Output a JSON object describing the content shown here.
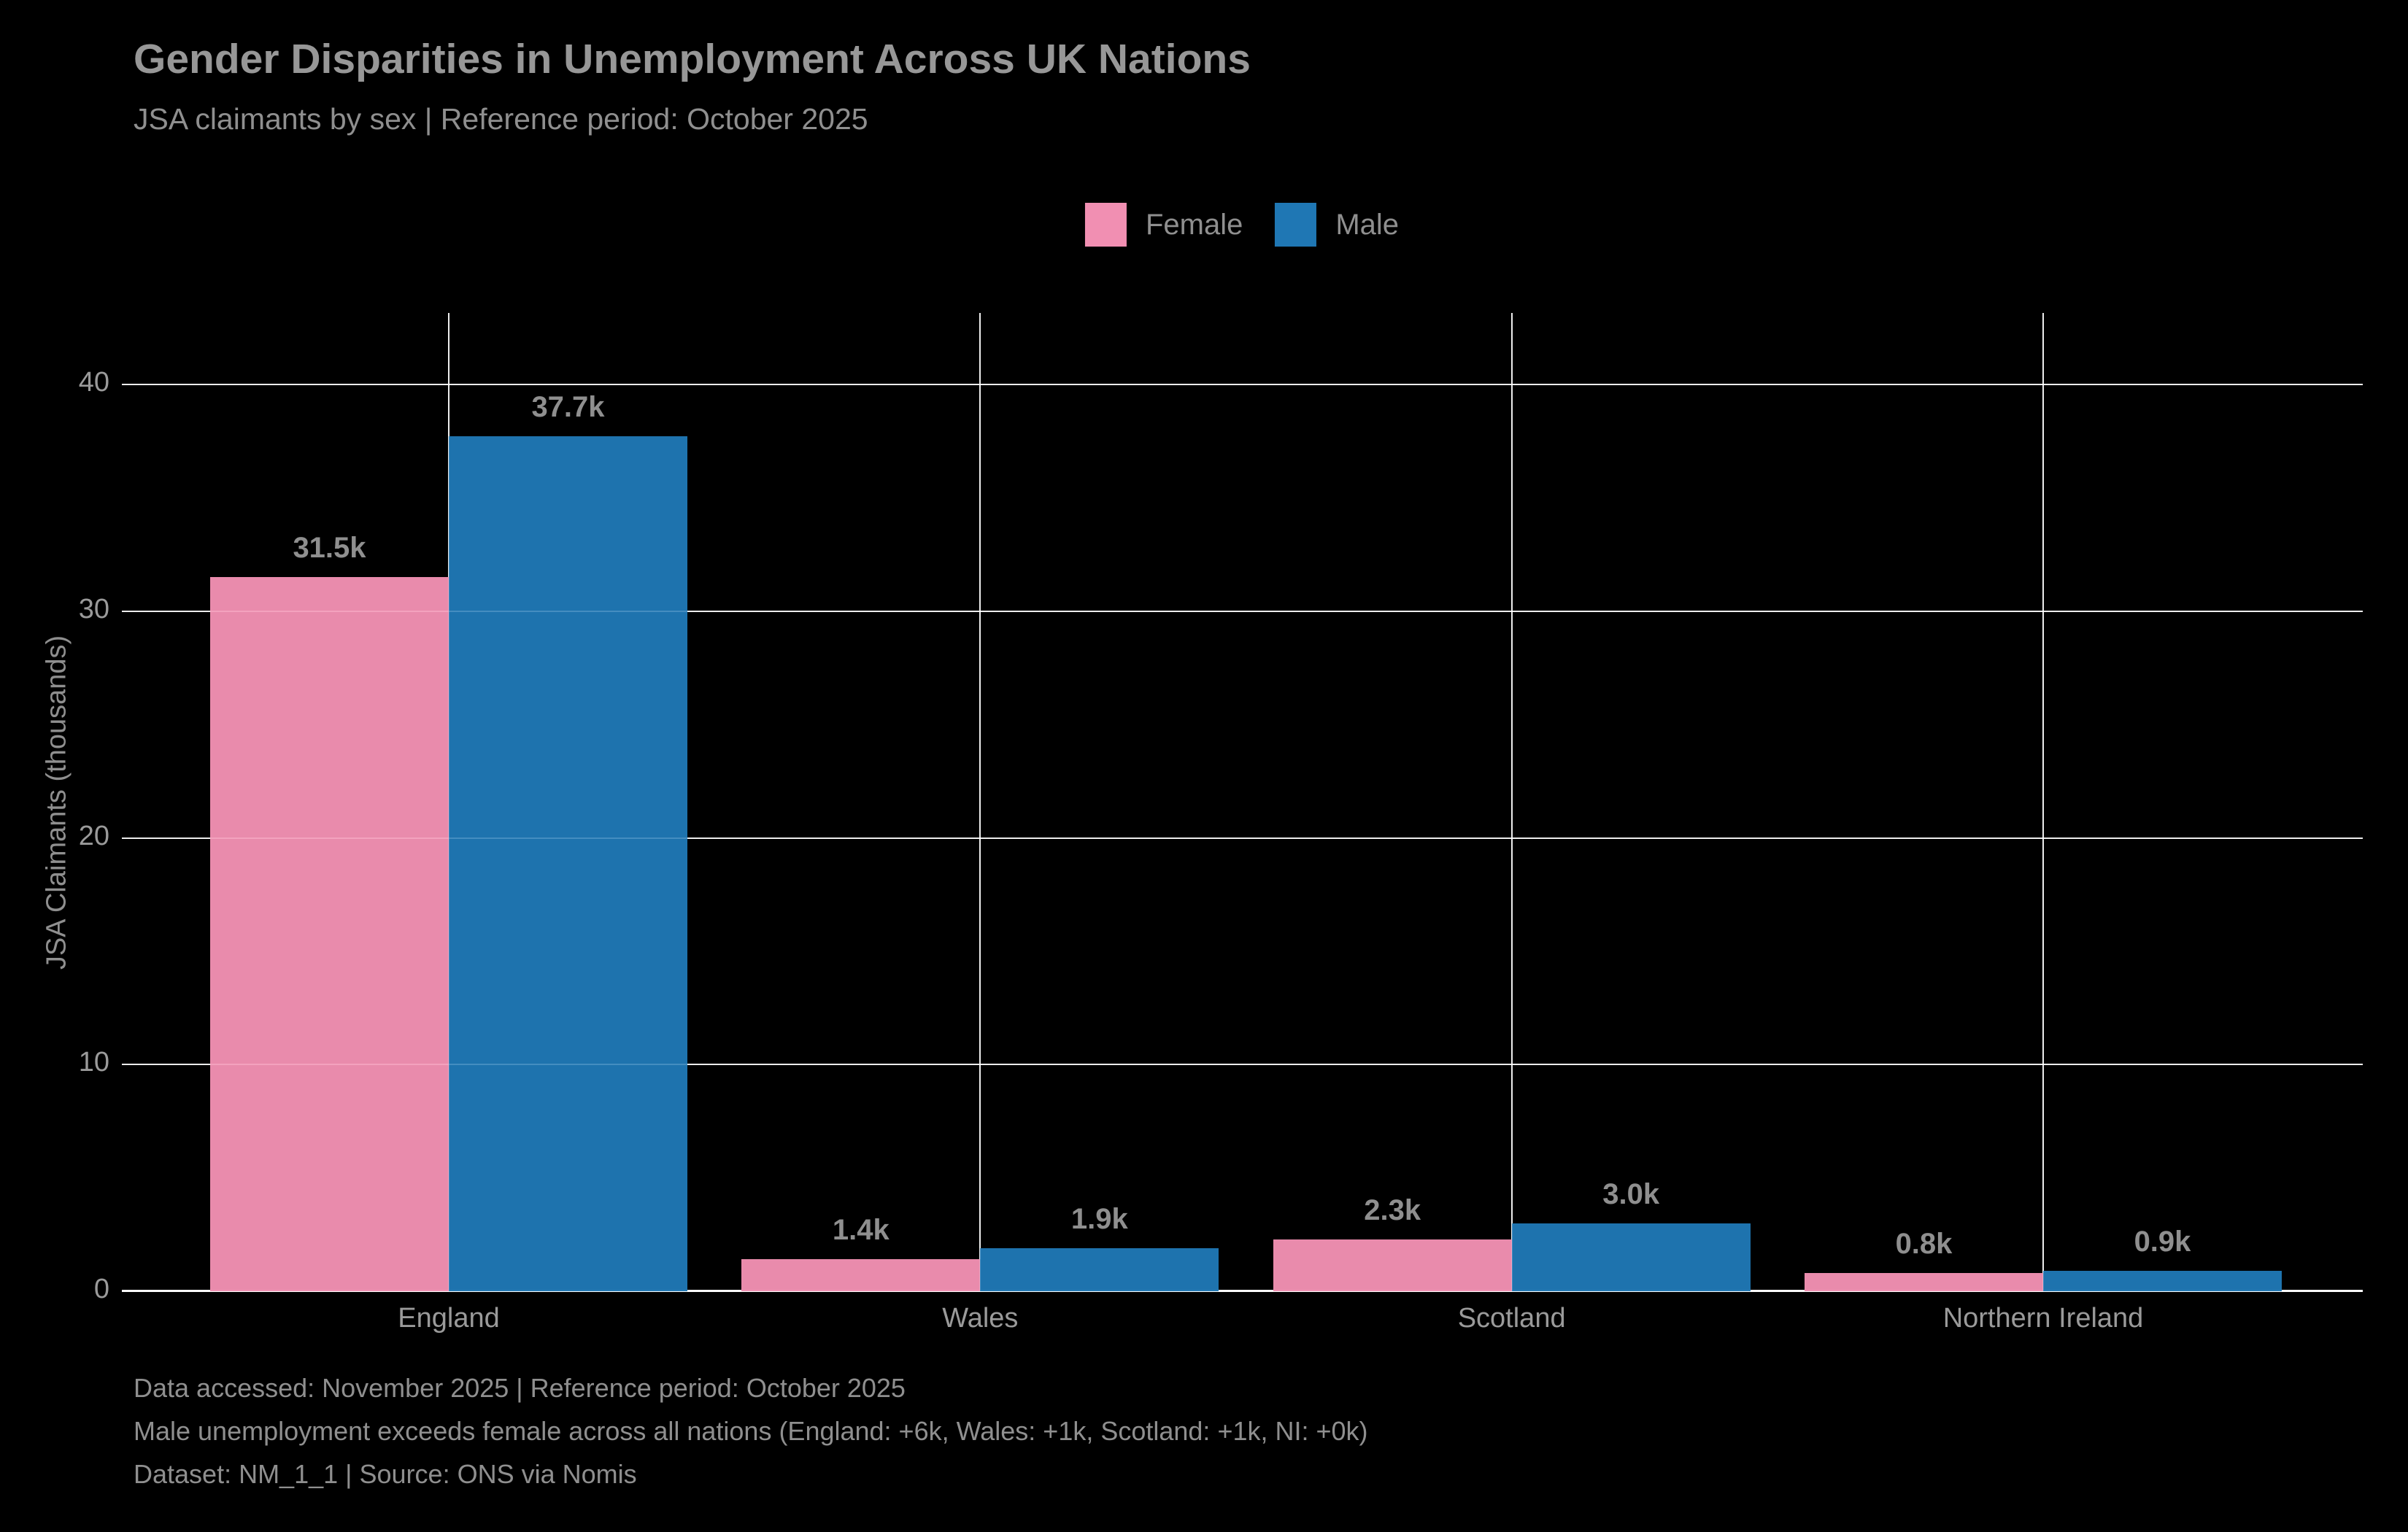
{
  "header": {
    "title": "Gender Disparities in Unemployment Across UK Nations",
    "subtitle": "JSA claimants by sex | Reference period: October 2025"
  },
  "chart_data": {
    "type": "bar",
    "title": "Gender Disparities in Unemployment Across UK Nations",
    "categories": [
      "England",
      "Wales",
      "Scotland",
      "Northern Ireland"
    ],
    "series": [
      {
        "name": "Female",
        "color": "#f18fb2",
        "values": [
          31.5,
          1.4,
          2.3,
          0.8
        ],
        "labels": [
          "31.5k",
          "1.4k",
          "2.3k",
          "0.8k"
        ]
      },
      {
        "name": "Male",
        "color": "#1f77b4",
        "values": [
          37.7,
          1.9,
          3.0,
          0.9
        ],
        "labels": [
          "37.7k",
          "1.9k",
          "3.0k",
          "0.9k"
        ]
      }
    ],
    "xlabel": "",
    "ylabel": "JSA Claimants (thousands)",
    "yticks": [
      0,
      10,
      20,
      30,
      40
    ],
    "ylim": [
      0,
      43.2
    ],
    "grid": true,
    "legend_position": "top-center",
    "background_color": "#000000",
    "grid_color": "#ffffff",
    "text_color": "#8f8f8f"
  },
  "footer": {
    "line1": "Data accessed: November 2025 | Reference period: October 2025",
    "line2": "Male unemployment exceeds female across all nations (England: +6k, Wales: +1k, Scotland: +1k, NI: +0k)",
    "line3": "Dataset: NM_1_1 | Source: ONS via Nomis"
  }
}
